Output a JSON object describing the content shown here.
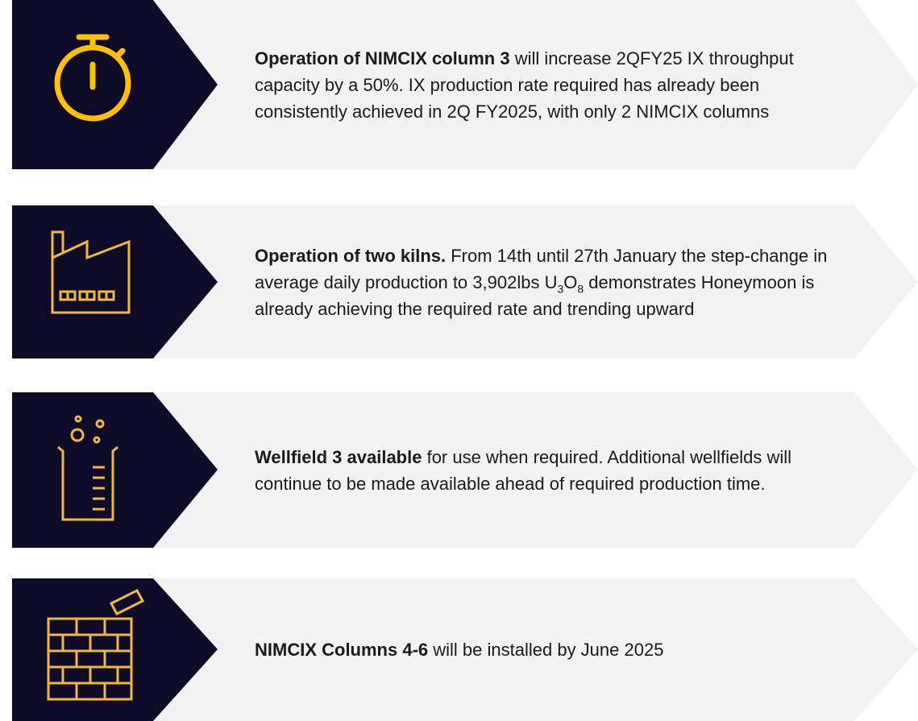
{
  "items": [
    {
      "bold": "Operation of NIMCIX column 3",
      "runs": [
        " will increase 2QFY25 IX throughput capacity by a 50%. IX production rate required has already been consistently achieved in 2Q FY2025, with only 2 NIMCIX columns"
      ]
    },
    {
      "bold": "Operation of two kilns.",
      "runs": [
        " From 14th until 27th January the step-change in average daily production to 3,902lbs U",
        "3",
        "O",
        "8",
        " demonstrates Honeymoon is already achieving the required rate and trending upward"
      ]
    },
    {
      "bold": "Wellfield 3 available",
      "runs": [
        " for use when required. Additional wellfields will continue to be made available ahead of required production time."
      ]
    },
    {
      "bold": "NIMCIX Columns 4-6",
      "runs": [
        " will be installed by June 2025"
      ]
    }
  ]
}
